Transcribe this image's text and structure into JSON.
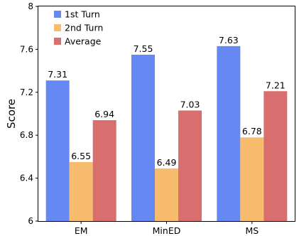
{
  "chart_data": {
    "type": "bar",
    "title": "",
    "xlabel": "",
    "ylabel": "Score",
    "categories": [
      "EM",
      "MinED",
      "MS"
    ],
    "ylim": [
      6,
      8
    ],
    "yticks": [
      "6",
      "6.4",
      "6.8",
      "7.2",
      "7.6",
      "8"
    ],
    "grid": false,
    "legend_position": "top-left",
    "series": [
      {
        "name": "1st Turn",
        "color": "#6688f2",
        "values": [
          7.31,
          7.55,
          7.63
        ],
        "labels": [
          "7.31",
          "7.55",
          "7.63"
        ]
      },
      {
        "name": "2nd Turn",
        "color": "#f8bc6f",
        "values": [
          6.55,
          6.49,
          6.78
        ],
        "labels": [
          "6.55",
          "6.49",
          "6.78"
        ]
      },
      {
        "name": "Average",
        "color": "#d86e6e",
        "values": [
          6.94,
          7.03,
          7.21
        ],
        "labels": [
          "6.94",
          "7.03",
          "7.21"
        ]
      }
    ]
  }
}
